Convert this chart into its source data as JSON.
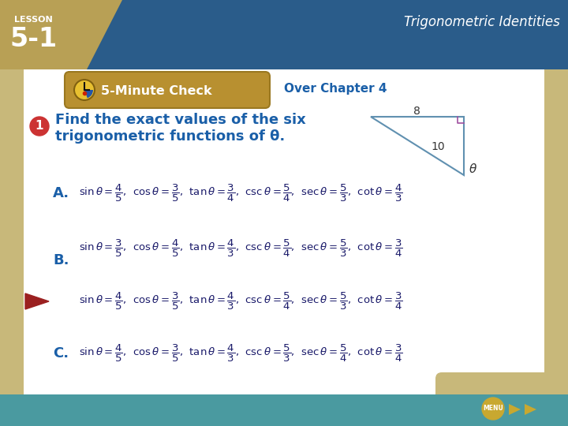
{
  "bg_outer": "#c8b87a",
  "bg_slide": "#ffffff",
  "top_bar_blue": "#2a5c8a",
  "top_bar_gold": "#b8a055",
  "lesson_label": "LESSON",
  "lesson_number": "5-1",
  "top_right_text": "Trigonometric Identities",
  "banner_bg": "#b8983a",
  "banner_text": "5-Minute Check",
  "over_chapter": "Over Chapter 4",
  "question_color": "#1a5fa8",
  "question_text_line1": "Find the exact values of the six",
  "question_text_line2": "trigonometric functions of θ.",
  "number_bg": "#cc3333",
  "triangle_color": "#6090b0",
  "right_angle_color": "#a050a0",
  "tri_label_8": "8",
  "tri_label_10": "10",
  "tri_label_theta": "θ",
  "formula_color": "#1a1a6a",
  "label_color": "#1a5fa8",
  "arrow_color": "#9b2020",
  "bottom_bar_color": "#4a9aa0",
  "menu_bg": "#c8a830",
  "nav_bg": "#4a9aa0",
  "opt_A": {
    "label": "A.",
    "sin_n": "4",
    "sin_d": "5",
    "cos_n": "3",
    "cos_d": "5",
    "tan_n": "3",
    "tan_d": "4",
    "csc_n": "5",
    "csc_d": "4",
    "sec_n": "5",
    "sec_d": "3",
    "cot_n": "4",
    "cot_d": "3"
  },
  "opt_B": {
    "label": "B.",
    "sin_n": "3",
    "sin_d": "5",
    "cos_n": "4",
    "cos_d": "5",
    "tan_n": "4",
    "tan_d": "3",
    "csc_n": "5",
    "csc_d": "4",
    "sec_n": "5",
    "sec_d": "3",
    "cot_n": "3",
    "cot_d": "4"
  },
  "opt_arrow": {
    "label": "",
    "sin_n": "4",
    "sin_d": "5",
    "cos_n": "3",
    "cos_d": "5",
    "tan_n": "4",
    "tan_d": "3",
    "csc_n": "5",
    "csc_d": "4",
    "sec_n": "5",
    "sec_d": "3",
    "cot_n": "3",
    "cot_d": "4"
  },
  "opt_C": {
    "label": "C.",
    "sin_n": "4",
    "sin_d": "5",
    "cos_n": "3",
    "cos_d": "5",
    "tan_n": "4",
    "tan_d": "3",
    "csc_n": "5",
    "csc_d": "3",
    "sec_n": "5",
    "sec_d": "4",
    "cot_n": "3",
    "cot_d": "4"
  }
}
